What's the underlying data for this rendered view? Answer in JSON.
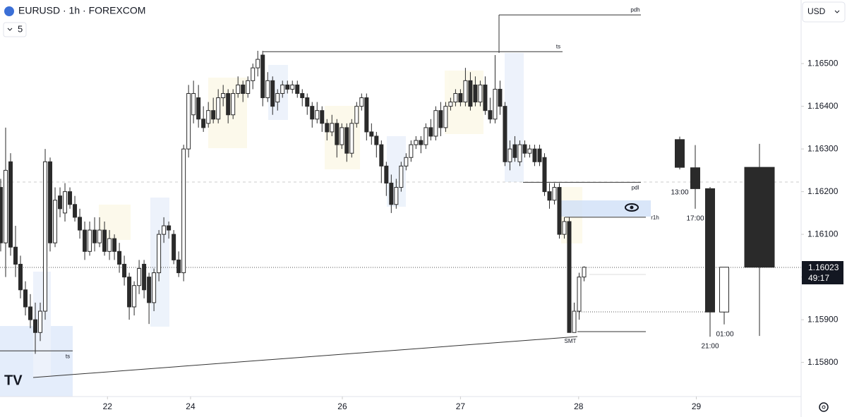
{
  "header": {
    "symbol": "EURUSD · 1h · FOREXCOM",
    "interval": "5",
    "currency": "USD"
  },
  "chart_data": {
    "type": "candlestick",
    "ylim": [
      1.1572,
      1.16649
    ],
    "yticks": [
      {
        "value": 1.165,
        "label": "1.16500"
      },
      {
        "value": 1.164,
        "label": "1.16400"
      },
      {
        "value": 1.163,
        "label": "1.16300"
      },
      {
        "value": 1.162,
        "label": "1.16200"
      },
      {
        "value": 1.161,
        "label": "1.16100"
      },
      {
        "value": 1.16,
        "label": "1.16000"
      },
      {
        "value": 1.159,
        "label": "1.15900"
      },
      {
        "value": 1.158,
        "label": "1.15800"
      }
    ],
    "xlim": [
      -0.14,
      161.9
    ],
    "xticks": [
      {
        "value": 21.6,
        "label": "22"
      },
      {
        "value": 38.4,
        "label": "24"
      },
      {
        "value": 69.1,
        "label": "26"
      },
      {
        "value": 93,
        "label": "27"
      },
      {
        "value": 116.9,
        "label": "28"
      },
      {
        "value": 140.7,
        "label": "29"
      }
    ],
    "up_color": "#ffffff",
    "down_color": "#2a2a2a",
    "ohlc": [
      [
        1.1621,
        1.1623,
        1.1606,
        1.1608
      ],
      [
        1.1608,
        1.1635,
        1.16,
        1.1625
      ],
      [
        1.1627,
        1.1629,
        1.1605,
        1.1607
      ],
      [
        1.1607,
        1.1612,
        1.16,
        1.1603
      ],
      [
        1.1603,
        1.1605,
        1.1595,
        1.1597
      ],
      [
        1.1597,
        1.1599,
        1.1591,
        1.1593
      ],
      [
        1.1593,
        1.1596,
        1.1588,
        1.159
      ],
      [
        1.159,
        1.1594,
        1.1582,
        1.1587
      ],
      [
        1.1587,
        1.1594,
        1.1585,
        1.1592
      ],
      [
        1.1592,
        1.163,
        1.159,
        1.1627
      ],
      [
        1.1627,
        1.1628,
        1.1606,
        1.1608
      ],
      [
        1.1608,
        1.1621,
        1.1607,
        1.1618
      ],
      [
        1.1619,
        1.1621,
        1.1614,
        1.1616
      ],
      [
        1.1615,
        1.1622,
        1.1613,
        1.162
      ],
      [
        1.162,
        1.1621,
        1.1616,
        1.1617
      ],
      [
        1.1617,
        1.1619,
        1.1613,
        1.1614
      ],
      [
        1.1614,
        1.1616,
        1.1609,
        1.1611
      ],
      [
        1.1611,
        1.1613,
        1.1604,
        1.1606
      ],
      [
        1.1606,
        1.1613,
        1.1605,
        1.1611
      ],
      [
        1.1611,
        1.1614,
        1.1606,
        1.1608
      ],
      [
        1.1608,
        1.1614,
        1.1607,
        1.1611
      ],
      [
        1.1611,
        1.1613,
        1.1605,
        1.1606
      ],
      [
        1.1606,
        1.1611,
        1.1604,
        1.1609
      ],
      [
        1.1609,
        1.161,
        1.1604,
        1.1606
      ],
      [
        1.1606,
        1.1608,
        1.1601,
        1.1603
      ],
      [
        1.1603,
        1.1605,
        1.1598,
        1.16
      ],
      [
        1.16,
        1.1601,
        1.159,
        1.1593
      ],
      [
        1.1593,
        1.1599,
        1.1591,
        1.1598
      ],
      [
        1.1598,
        1.1604,
        1.1596,
        1.1602
      ],
      [
        1.1603,
        1.1604,
        1.1595,
        1.1597
      ],
      [
        1.16,
        1.1601,
        1.1589,
        1.1594
      ],
      [
        1.1594,
        1.1602,
        1.1592,
        1.1601
      ],
      [
        1.1601,
        1.1611,
        1.1599,
        1.161
      ],
      [
        1.161,
        1.1614,
        1.1608,
        1.1612
      ],
      [
        1.1612,
        1.1613,
        1.1609,
        1.1611
      ],
      [
        1.161,
        1.1611,
        1.1603,
        1.1604
      ],
      [
        1.1604,
        1.1606,
        1.16,
        1.1601
      ],
      [
        1.1601,
        1.1631,
        1.1599,
        1.163
      ],
      [
        1.163,
        1.1645,
        1.1628,
        1.1643
      ],
      [
        1.1638,
        1.1646,
        1.1636,
        1.1643
      ],
      [
        1.1642,
        1.1645,
        1.1635,
        1.1637
      ],
      [
        1.1637,
        1.164,
        1.1634,
        1.1635
      ],
      [
        1.1636,
        1.1641,
        1.1635,
        1.1639
      ],
      [
        1.1639,
        1.1642,
        1.1636,
        1.1637
      ],
      [
        1.1637,
        1.1644,
        1.1636,
        1.1642
      ],
      [
        1.1642,
        1.1645,
        1.164,
        1.1643
      ],
      [
        1.1643,
        1.1644,
        1.1636,
        1.1638
      ],
      [
        1.1638,
        1.1644,
        1.1637,
        1.1643
      ],
      [
        1.1643,
        1.1647,
        1.1642,
        1.1645
      ],
      [
        1.1645,
        1.1646,
        1.1641,
        1.1643
      ],
      [
        1.1643,
        1.1647,
        1.1642,
        1.1646
      ],
      [
        1.1646,
        1.165,
        1.1644,
        1.1649
      ],
      [
        1.1649,
        1.1653,
        1.1647,
        1.1651
      ],
      [
        1.1652,
        1.1653,
        1.164,
        1.1642
      ],
      [
        1.1642,
        1.1648,
        1.1641,
        1.1646
      ],
      [
        1.1646,
        1.1647,
        1.1638,
        1.164
      ],
      [
        1.1641,
        1.1644,
        1.1639,
        1.1643
      ],
      [
        1.1643,
        1.1646,
        1.1642,
        1.1645
      ],
      [
        1.1645,
        1.1646,
        1.1643,
        1.1644
      ],
      [
        1.1644,
        1.1646,
        1.1643,
        1.1645
      ],
      [
        1.1645,
        1.1646,
        1.1642,
        1.1643
      ],
      [
        1.1643,
        1.1644,
        1.164,
        1.1642
      ],
      [
        1.1642,
        1.1643,
        1.1638,
        1.164
      ],
      [
        1.164,
        1.1641,
        1.1635,
        1.1637
      ],
      [
        1.1637,
        1.1641,
        1.1636,
        1.1639
      ],
      [
        1.1639,
        1.164,
        1.1634,
        1.1636
      ],
      [
        1.1636,
        1.1637,
        1.1632,
        1.1634
      ],
      [
        1.1634,
        1.1638,
        1.1633,
        1.1636
      ],
      [
        1.1636,
        1.1637,
        1.1628,
        1.1631
      ],
      [
        1.1631,
        1.1636,
        1.163,
        1.1635
      ],
      [
        1.1635,
        1.1636,
        1.1627,
        1.1629
      ],
      [
        1.1629,
        1.1637,
        1.1628,
        1.1636
      ],
      [
        1.1636,
        1.1641,
        1.1635,
        1.164
      ],
      [
        1.164,
        1.1643,
        1.1639,
        1.1642
      ],
      [
        1.1642,
        1.1643,
        1.1632,
        1.1634
      ],
      [
        1.1634,
        1.1636,
        1.1631,
        1.1633
      ],
      [
        1.1633,
        1.1634,
        1.1628,
        1.1631
      ],
      [
        1.1631,
        1.1632,
        1.1622,
        1.1626
      ],
      [
        1.1626,
        1.1627,
        1.1619,
        1.1622
      ],
      [
        1.1622,
        1.1624,
        1.1615,
        1.1617
      ],
      [
        1.1617,
        1.1623,
        1.1616,
        1.1621
      ],
      [
        1.1621,
        1.1627,
        1.162,
        1.1626
      ],
      [
        1.1626,
        1.1629,
        1.1625,
        1.1628
      ],
      [
        1.1628,
        1.1632,
        1.1627,
        1.1631
      ],
      [
        1.1631,
        1.1633,
        1.163,
        1.1632
      ],
      [
        1.1632,
        1.1633,
        1.1629,
        1.1631
      ],
      [
        1.1631,
        1.1636,
        1.163,
        1.1635
      ],
      [
        1.1635,
        1.1637,
        1.1632,
        1.1633
      ],
      [
        1.1633,
        1.164,
        1.1632,
        1.1639
      ],
      [
        1.1639,
        1.1641,
        1.1633,
        1.1635
      ],
      [
        1.1635,
        1.1641,
        1.1634,
        1.164
      ],
      [
        1.164,
        1.1642,
        1.1639,
        1.1641
      ],
      [
        1.1641,
        1.1644,
        1.164,
        1.1643
      ],
      [
        1.1643,
        1.1644,
        1.164,
        1.1641
      ],
      [
        1.1641,
        1.1649,
        1.164,
        1.1646
      ],
      [
        1.1646,
        1.1648,
        1.1639,
        1.164
      ],
      [
        1.1645,
        1.1647,
        1.164,
        1.1641
      ],
      [
        1.1641,
        1.1646,
        1.164,
        1.1645
      ],
      [
        1.1645,
        1.1647,
        1.1638,
        1.1639
      ],
      [
        1.1639,
        1.1642,
        1.1636,
        1.1637
      ],
      [
        1.1637,
        1.1652,
        1.1636,
        1.1644
      ],
      [
        1.1644,
        1.1646,
        1.1638,
        1.164
      ],
      [
        1.164,
        1.1641,
        1.1626,
        1.1627
      ],
      [
        1.1627,
        1.1632,
        1.1625,
        1.163
      ],
      [
        1.1631,
        1.1633,
        1.1627,
        1.1628
      ],
      [
        1.1627,
        1.1632,
        1.1626,
        1.1631
      ],
      [
        1.1631,
        1.1632,
        1.1628,
        1.1629
      ],
      [
        1.1629,
        1.1631,
        1.1628,
        1.163
      ],
      [
        1.163,
        1.1631,
        1.1626,
        1.1627
      ],
      [
        1.163,
        1.1631,
        1.1626,
        1.1627
      ],
      [
        1.1628,
        1.1629,
        1.1619,
        1.162
      ],
      [
        1.162,
        1.1622,
        1.1616,
        1.1618
      ],
      [
        1.1618,
        1.1622,
        1.1617,
        1.1621
      ],
      [
        1.1621,
        1.1622,
        1.1609,
        1.161
      ],
      [
        1.161,
        1.1614,
        1.1609,
        1.1613
      ],
      [
        1.1613,
        1.1614,
        1.1587,
        1.1587
      ],
      [
        1.1587,
        1.1594,
        1.1587,
        1.1592
      ],
      [
        1.1592,
        1.1601,
        1.159,
        1.16
      ],
      [
        1.16,
        1.16025,
        1.1599,
        1.16023
      ]
    ],
    "htf": [
      {
        "label": "13:00",
        "ohlc": [
          1.16322,
          1.16329,
          1.16252,
          1.16257
        ]
      },
      {
        "label": "17:00",
        "ohlc": [
          1.16256,
          1.16309,
          1.1616,
          1.16207
        ]
      },
      {
        "label": "21:00",
        "ohlc": [
          1.16207,
          1.16211,
          1.1586,
          1.15918
        ]
      },
      {
        "label": "01:00",
        "ohlc": [
          1.15918,
          1.16023,
          1.15889,
          1.16023
        ]
      },
      {
        "ohlc": [
          1.16257,
          1.16312,
          1.15862,
          1.16023
        ]
      }
    ],
    "levels": [
      {
        "label": "pdh",
        "price": 1.16614
      },
      {
        "label": "ts",
        "price": 1.16528
      },
      {
        "label": "pdl",
        "price": 1.16222
      },
      {
        "label": "r1h",
        "price": 1.1614
      },
      {
        "label": "ts",
        "price": 1.15827
      }
    ],
    "smt_label": "SMT",
    "last_price": 1.16023,
    "countdown": "49:17"
  }
}
